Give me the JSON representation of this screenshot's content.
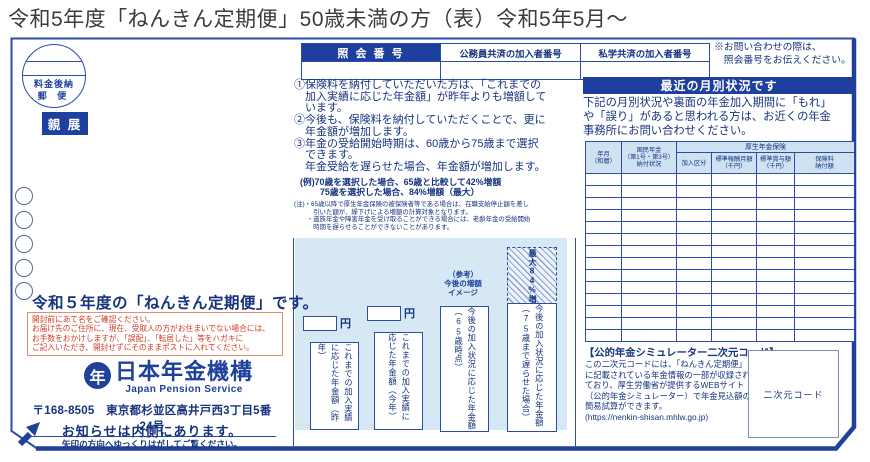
{
  "title": "令和5年度「ねんきん定期便」50歳未満の方（表）令和5年5月～",
  "colors": {
    "primary_blue": "#1f419b",
    "header_bar_blue": "#1e3f9e",
    "text_blue": "#16337e",
    "table_header_blue": "#cfe2f2",
    "chart_background": "#d5e8f4",
    "warning_red": "#d13a20",
    "warning_border": "#e09070"
  },
  "postage": {
    "stamp_line1": "料金後納",
    "stamp_line2": "郵 便",
    "confidential_label": "親 展"
  },
  "inquiry": {
    "headers": [
      "照 会 番 号",
      "公務員共済の加入者番号",
      "私学共済の加入者番号"
    ],
    "note": "※お問い合わせの際は、\n　照会番号をお伝えください。"
  },
  "notice": {
    "item1": "①保険料を納付していただいた方は、「これまでの\n　加入実績に応じた年金額」が昨年よりも増額して\n　います。",
    "item2": "②今後も、保険料を納付していただくことで、更に\n　年金額が増加します。",
    "item3": "③年金の受給開始時期は、60歳から75歳まで選択\n　できます。\n　年金受給を遅らせた場合、年金額が増加します。",
    "example": "(例)70歳を選択した場合、65歳と比較して42%増額\n　　 75歳を選択した場合、84%増額（最大）",
    "caution": "(注)・65歳以降で厚生年金保険の被保険者等である場合は、在職支給停止額を差し\n　　　引いた額が、繰下げによる増額の計算対象となります。\n　　・遺族年金や障害年金を受け取ることができる場合には、老齢年金の受給開始\n　　　時期を遅らせることができないことがあります。"
  },
  "chart": {
    "bars": [
      {
        "label": "これまでの加入実績に応じた年金額（昨年）",
        "unit": "円"
      },
      {
        "label": "これまでの加入実績に応じた年金額（今年）",
        "unit": "円"
      },
      {
        "label": "今後の加入状況に応じた年金額（65歳時点）",
        "note": "（参考）\n今後の増額\nイメージ"
      },
      {
        "label": "今後の加入状況に応じた年金額（75歳まで遅らせた場合）",
        "increase": "最大84%増"
      }
    ]
  },
  "monthly": {
    "title": "最近の月別状況です",
    "description": "下記の月別状況や裏面の年金加入期間に「もれ」\nや「誤り」があると思われる方は、お近くの年金\n事務所にお問い合わせください。",
    "table": {
      "col_month": "年月\n（和暦）",
      "col_kokumin": "国民年金\n（第1号・第3号）\n納付状況",
      "group_kosei": "厚生年金保険",
      "col_kanyu": "加入区分",
      "col_hoshu": "標準報酬月額\n（千円）",
      "col_shoyo": "標準賞与額\n（千円）",
      "col_hokenryo": "保険料\n納付額",
      "empty_rows": 14
    }
  },
  "simulator": {
    "title": "【公的年金シミュレーター二次元コード】",
    "description": "この二次元コードには、「ねんきん定期便」\nに記載されている年金情報の一部が収録され\nており、厚生労働省が提供するWEBサイト\n（公的年金シミュレーター）で年金見込額の\n簡易試算ができます。\n(https://nenkin-shisan.mhlw.go.jp)",
    "qr_label": "二次元コード"
  },
  "address_face": {
    "year_title": "令和５年度の「ねんきん定期便」です。",
    "warning": "開封前にあて名をご確認ください。\nお届け先のご住所に、現在、受取人の方がお住まいでない場合には、\nお手数をおかけしますが、「誤配」、「転居した」等をハガキに\nご記入いただき、開封せずにそのままポストに入れてください。",
    "org_seal": "年",
    "org_name": "日本年金機構",
    "org_name_en": "Japan Pension Service",
    "address": "〒168-8505　東京都杉並区高井戸西3丁目5番24号",
    "inside_notice": "お知らせは内側にあります。",
    "peel_notice": "矢印の方向へゆっくりはがしてご覧ください。"
  }
}
